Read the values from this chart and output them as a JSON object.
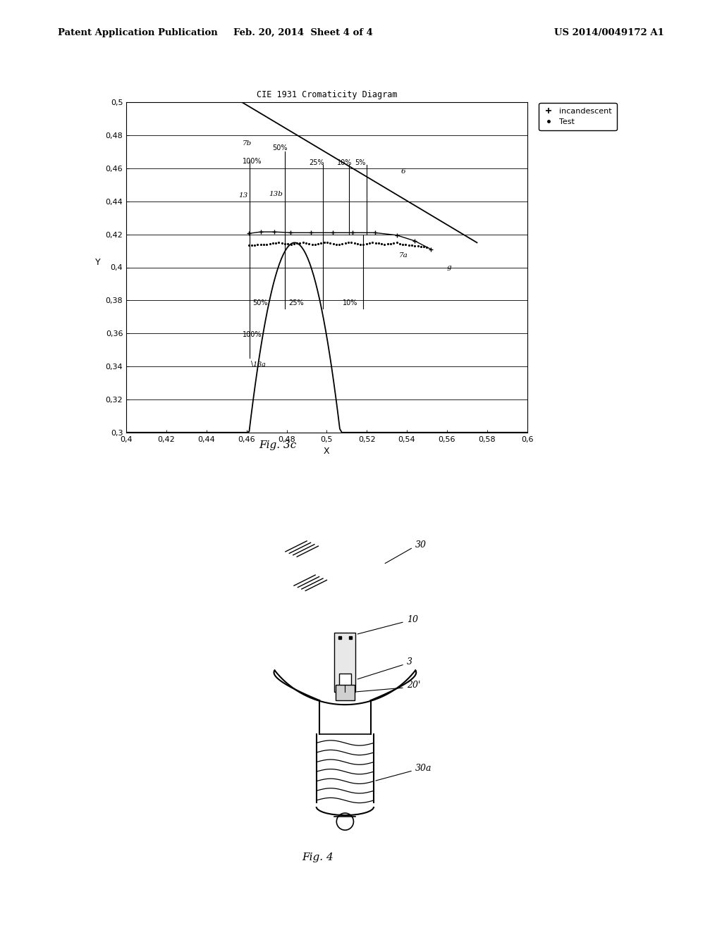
{
  "header_left": "Patent Application Publication",
  "header_center": "Feb. 20, 2014  Sheet 4 of 4",
  "header_right": "US 2014/0049172 A1",
  "fig3c_title": "CIE 1931 Cromaticity Diagram",
  "fig3c_xlabel": "X",
  "fig3c_ylabel": "Y",
  "fig3c_xlim": [
    0.4,
    0.6
  ],
  "fig3c_ylim": [
    0.3,
    0.5
  ],
  "fig3c_xticks": [
    0.4,
    0.42,
    0.44,
    0.46,
    0.48,
    0.5,
    0.52,
    0.54,
    0.56,
    0.58,
    0.6
  ],
  "fig3c_yticks": [
    0.3,
    0.32,
    0.34,
    0.36,
    0.38,
    0.4,
    0.42,
    0.44,
    0.46,
    0.48,
    0.5
  ],
  "fig3c_xtick_labels": [
    "0,4",
    "0,42",
    "0,44",
    "0,46",
    "0,48",
    "0,5",
    "0,52",
    "0,54",
    "0,56",
    "0,58",
    "0,6"
  ],
  "fig3c_ytick_labels": [
    "0,3",
    "0,32",
    "0,34",
    "0,36",
    "0,38",
    "0,4",
    "0,42",
    "0,44",
    "0,46",
    "0,48",
    "0,5"
  ],
  "fig_label_3c": "Fig. 3c",
  "fig_label_4": "Fig. 4",
  "background_color": "#ffffff"
}
